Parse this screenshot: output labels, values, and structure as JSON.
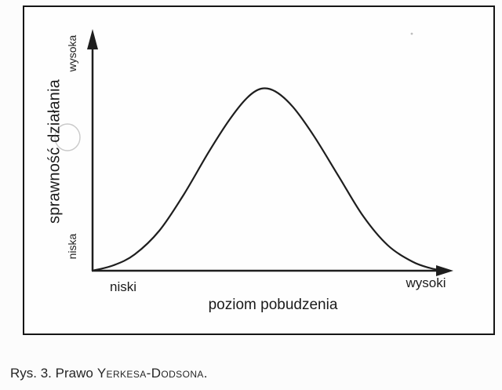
{
  "figure": {
    "y_axis": {
      "label": "sprawność działania",
      "tick_top": "wysoka",
      "tick_bottom": "niska"
    },
    "x_axis": {
      "label": "poziom pobudzenia",
      "tick_left": "niski",
      "tick_right": "wysoki"
    },
    "caption": {
      "prefix": "Rys. 3. Prawo",
      "law_name": "Yerkesa-Dodsona."
    }
  },
  "chart_data": {
    "type": "line",
    "title": "",
    "xlabel": "poziom pobudzenia",
    "ylabel": "sprawność działania",
    "x_tick_labels": [
      "niski",
      "wysoki"
    ],
    "y_tick_labels": [
      "niska",
      "wysoka"
    ],
    "xlim": [
      0,
      1
    ],
    "ylim": [
      0,
      1
    ],
    "grid": false,
    "legend": false,
    "curve_shape": "inverted-U",
    "series": [
      {
        "name": "sprawność działania vs poziom pobudzenia",
        "x": [
          0,
          0.06,
          0.12,
          0.19,
          0.26,
          0.33,
          0.39,
          0.44,
          0.48,
          0.52,
          0.57,
          0.63,
          0.7,
          0.77,
          0.84,
          0.91,
          0.96,
          1.0
        ],
        "y": [
          0,
          0.03,
          0.09,
          0.22,
          0.42,
          0.65,
          0.83,
          0.95,
          1.0,
          0.985,
          0.9,
          0.74,
          0.52,
          0.3,
          0.14,
          0.05,
          0.015,
          0
        ]
      }
    ],
    "stroke_color": "#1e1e1e",
    "frame_color": "#161616"
  }
}
